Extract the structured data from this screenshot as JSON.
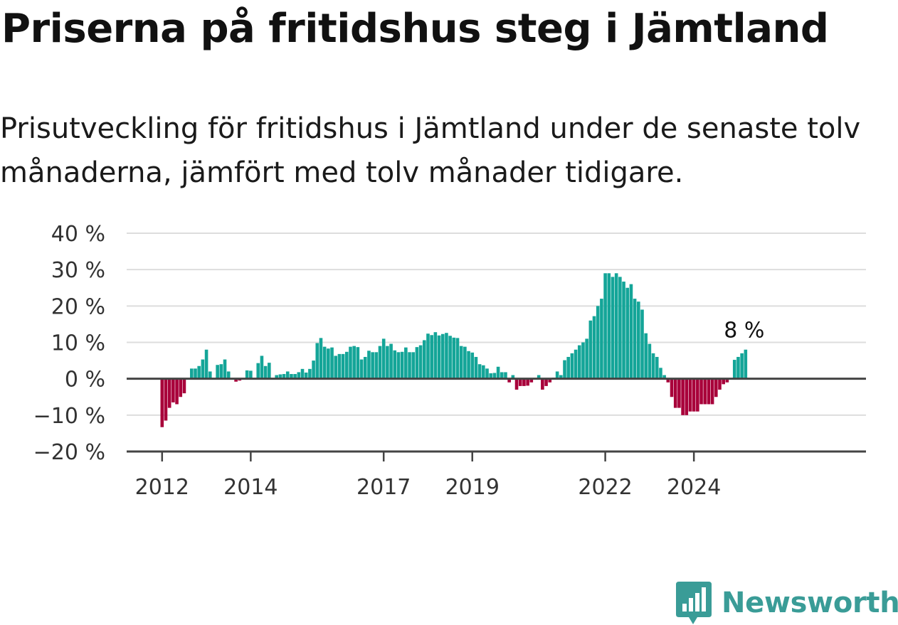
{
  "title": "Priserna på fritidshus steg i Jämtland",
  "subtitle": "Prisutveckling för fritidshus i Jämtland under de senaste tolv månaderna, jämfört med tolv månader tidigare.",
  "brand": "Newsworthy",
  "colors": {
    "positive": "#14a598",
    "negative": "#a8003a",
    "grid": "#dddddd",
    "zero": "#444444",
    "brand": "#3a9c97"
  },
  "chart_data": {
    "type": "bar",
    "x_start": "2012-01",
    "xlabel": "",
    "ylabel": "",
    "ylim": [
      -20,
      40
    ],
    "y_ticks": [
      {
        "value": 40,
        "label": "40 %"
      },
      {
        "value": 30,
        "label": "30 %"
      },
      {
        "value": 20,
        "label": "20 %"
      },
      {
        "value": 10,
        "label": "10 %"
      },
      {
        "value": 0,
        "label": "0 %"
      },
      {
        "value": -10,
        "label": "−10 %"
      },
      {
        "value": -20,
        "label": "−20 %"
      }
    ],
    "x_ticks": [
      {
        "year": 2012,
        "label": "2012"
      },
      {
        "year": 2014,
        "label": "2014"
      },
      {
        "year": 2017,
        "label": "2017"
      },
      {
        "year": 2019,
        "label": "2019"
      },
      {
        "year": 2022,
        "label": "2022"
      },
      {
        "year": 2024,
        "label": "2024"
      }
    ],
    "annotation": {
      "text": "8 %",
      "target": "last"
    },
    "grid": true,
    "values": [
      -13.3,
      -11.5,
      -8.0,
      -6.5,
      -7.0,
      -5.0,
      -4.0,
      0.0,
      2.8,
      2.8,
      3.5,
      5.3,
      8.0,
      2.0,
      0.0,
      3.8,
      4.0,
      5.3,
      2.0,
      0.0,
      -0.8,
      -0.5,
      0.0,
      2.3,
      2.2,
      0.0,
      4.3,
      6.3,
      3.5,
      4.4,
      0.0,
      1.0,
      1.2,
      1.3,
      2.0,
      1.3,
      1.3,
      1.8,
      2.7,
      1.7,
      2.7,
      5.0,
      9.8,
      11.2,
      8.8,
      8.3,
      8.6,
      6.3,
      6.8,
      6.8,
      7.4,
      8.8,
      9.0,
      8.7,
      5.3,
      6.0,
      7.7,
      7.3,
      7.3,
      9.0,
      11.0,
      9.0,
      9.6,
      7.8,
      7.3,
      7.4,
      8.6,
      7.3,
      7.3,
      8.7,
      9.2,
      10.6,
      12.4,
      12.0,
      12.8,
      11.9,
      12.3,
      12.6,
      11.8,
      11.3,
      11.2,
      9.0,
      8.8,
      7.6,
      7.2,
      6.0,
      4.0,
      3.7,
      2.8,
      1.5,
      1.6,
      3.3,
      1.8,
      1.8,
      -1.0,
      1.0,
      -3.0,
      -2.0,
      -2.0,
      -1.9,
      -1.0,
      0.0,
      1.0,
      -3.0,
      -2.0,
      -1.0,
      0.3,
      2.0,
      1.0,
      5.1,
      6.0,
      7.0,
      8.0,
      9.2,
      10.0,
      11.0,
      16.0,
      17.2,
      20.0,
      22.0,
      29.0,
      29.0,
      28.0,
      29.0,
      28.0,
      26.7,
      25.0,
      26.0,
      22.0,
      21.2,
      19.0,
      12.5,
      9.6,
      7.0,
      6.0,
      3.0,
      1.0,
      -1.0,
      -5.0,
      -8.0,
      -8.0,
      -10.0,
      -10.0,
      -9.0,
      -9.0,
      -9.0,
      -7.0,
      -7.0,
      -7.0,
      -7.0,
      -5.0,
      -3.0,
      -1.5,
      -1.0,
      0.0,
      5.2,
      6.0,
      7.0,
      8.0
    ]
  }
}
